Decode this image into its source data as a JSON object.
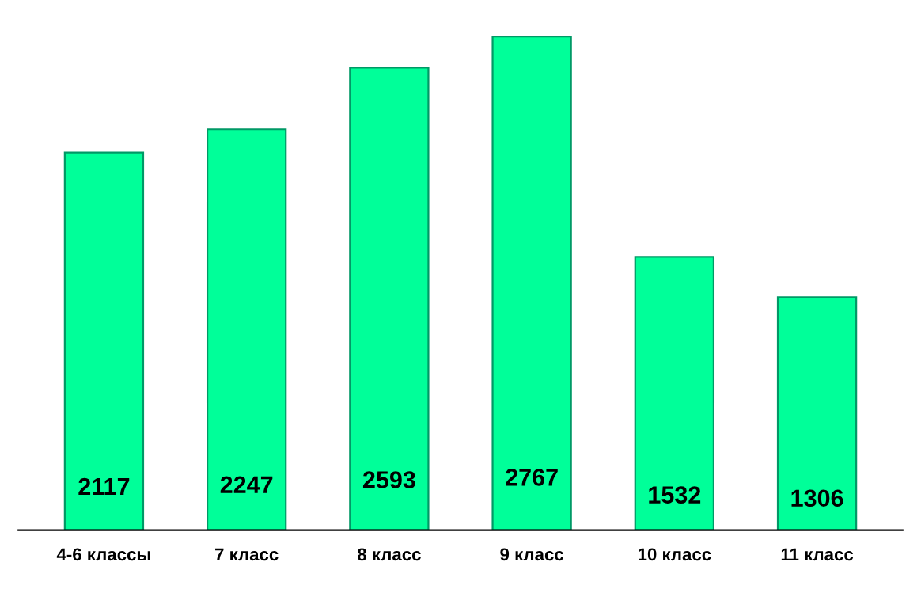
{
  "chart_data": {
    "type": "bar",
    "categories": [
      "4-6 классы",
      "7 класс",
      "8 класс",
      "9 класс",
      "10 класс",
      "11 класс"
    ],
    "values": [
      2117,
      2247,
      2593,
      2767,
      1532,
      1306
    ],
    "color": "#00ff99",
    "data_labels": true,
    "grid": false,
    "legend": false
  }
}
